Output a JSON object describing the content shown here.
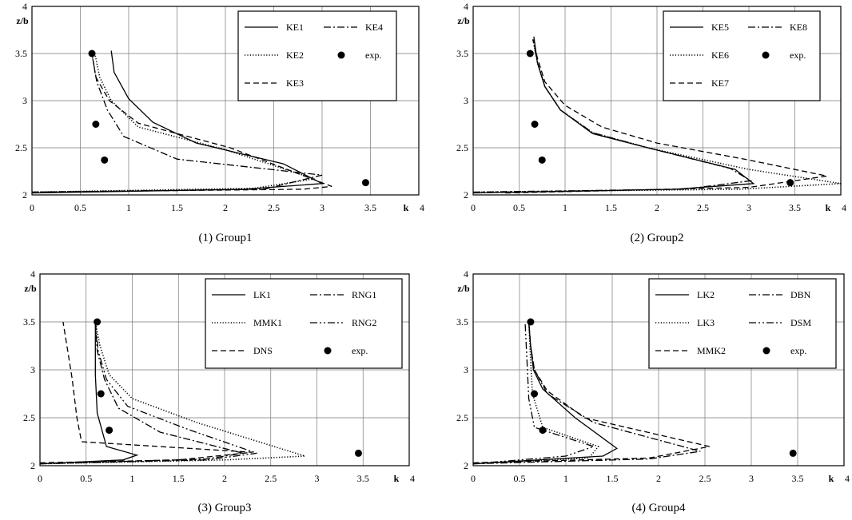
{
  "chart_data": [
    {
      "type": "line",
      "caption": "(1) Group1",
      "xlabel": "k",
      "ylabel": "z/b",
      "xlim": [
        0,
        4
      ],
      "ylim": [
        2,
        4
      ],
      "xticks": [
        "0",
        "0.5",
        "1",
        "1.5",
        "2",
        "2.5",
        "3",
        "3.5",
        "4"
      ],
      "yticks": [
        "2",
        "2.5",
        "3",
        "3.5",
        "4"
      ],
      "grid": true,
      "legend": "top-right",
      "series": [
        {
          "name": "KE1",
          "style": "solid",
          "x": [
            0,
            2.2,
            3.0,
            2.6,
            1.7,
            1.25,
            1.0,
            0.85,
            0.82
          ],
          "y": [
            2.02,
            2.06,
            2.12,
            2.33,
            2.55,
            2.77,
            3.02,
            3.3,
            3.53
          ]
        },
        {
          "name": "KE2",
          "style": "dotted",
          "x": [
            0,
            2.3,
            2.92,
            2.0,
            1.1,
            0.82,
            0.7,
            0.65
          ],
          "y": [
            2.03,
            2.07,
            2.17,
            2.48,
            2.72,
            3.0,
            3.25,
            3.5
          ]
        },
        {
          "name": "KE3",
          "style": "dashed",
          "x": [
            0,
            2.8,
            3.1,
            2.05,
            1.1,
            0.8,
            0.66,
            0.62
          ],
          "y": [
            2.03,
            2.06,
            2.09,
            2.5,
            2.76,
            3.0,
            3.25,
            3.5
          ]
        },
        {
          "name": "KE4",
          "style": "dashdot",
          "x": [
            0,
            2.4,
            3.0,
            1.5,
            0.95,
            0.78,
            0.67,
            0.62
          ],
          "y": [
            2.03,
            2.06,
            2.21,
            2.38,
            2.62,
            2.9,
            3.2,
            3.5
          ]
        },
        {
          "name": "exp.",
          "style": "marker",
          "x": [
            0.62,
            0.66,
            0.75,
            3.45
          ],
          "y": [
            3.5,
            2.75,
            2.37,
            2.13
          ]
        }
      ]
    },
    {
      "type": "line",
      "caption": "(2) Group2",
      "xlabel": "k",
      "ylabel": "z/b",
      "xlim": [
        0,
        4
      ],
      "ylim": [
        2,
        4
      ],
      "xticks": [
        "0",
        "0.5",
        "1",
        "1.5",
        "2",
        "2.5",
        "3",
        "3.5",
        "4"
      ],
      "yticks": [
        "2",
        "2.5",
        "3",
        "3.5",
        "4"
      ],
      "grid": true,
      "legend": "top-right",
      "series": [
        {
          "name": "KE5",
          "style": "solid",
          "x": [
            0,
            2.2,
            3.05,
            2.85,
            1.9,
            1.3,
            0.95,
            0.78,
            0.7,
            0.66
          ],
          "y": [
            2.02,
            2.06,
            2.12,
            2.27,
            2.5,
            2.65,
            2.9,
            3.15,
            3.4,
            3.68
          ]
        },
        {
          "name": "KE6",
          "style": "dotted",
          "x": [
            0,
            2.9,
            4.0,
            3.0,
            1.9,
            1.3,
            0.95,
            0.78,
            0.7,
            0.65
          ],
          "y": [
            2.03,
            2.06,
            2.12,
            2.27,
            2.5,
            2.66,
            2.9,
            3.15,
            3.4,
            3.65
          ]
        },
        {
          "name": "KE7",
          "style": "dashed",
          "x": [
            0.35,
            3.0,
            3.85,
            2.95,
            2.0,
            1.4,
            1.0,
            0.78,
            0.7,
            0.65
          ],
          "y": [
            2.02,
            2.08,
            2.2,
            2.38,
            2.55,
            2.72,
            2.95,
            3.2,
            3.45,
            3.65
          ]
        },
        {
          "name": "KE8",
          "style": "dashdot",
          "x": [
            0,
            2.3,
            3.02,
            2.8,
            1.9,
            1.3,
            0.95,
            0.78,
            0.7,
            0.65
          ],
          "y": [
            2.03,
            2.06,
            2.15,
            2.28,
            2.5,
            2.66,
            2.9,
            3.15,
            3.4,
            3.65
          ]
        },
        {
          "name": "exp.",
          "style": "marker",
          "x": [
            0.62,
            0.67,
            0.75,
            3.45
          ],
          "y": [
            3.5,
            2.75,
            2.37,
            2.13
          ]
        }
      ]
    },
    {
      "type": "line",
      "caption": "(3) Group3",
      "xlabel": "k",
      "ylabel": "z/b",
      "xlim": [
        0,
        4
      ],
      "ylim": [
        2,
        4
      ],
      "xticks": [
        "0",
        "0.5",
        "1",
        "1.5",
        "2",
        "2.5",
        "3",
        "3.5",
        "4"
      ],
      "yticks": [
        "2",
        "2.5",
        "3",
        "3.5",
        "4"
      ],
      "grid": true,
      "legend": "top-right",
      "series": [
        {
          "name": "LK1",
          "style": "solid",
          "x": [
            0,
            0.9,
            1.05,
            0.72,
            0.62,
            0.6,
            0.6
          ],
          "y": [
            2.02,
            2.06,
            2.11,
            2.2,
            2.55,
            2.95,
            3.5
          ]
        },
        {
          "name": "MMK1",
          "style": "dotted",
          "x": [
            0,
            2.0,
            2.87,
            1.7,
            1.0,
            0.75,
            0.65,
            0.6
          ],
          "y": [
            2.02,
            2.06,
            2.1,
            2.45,
            2.7,
            2.95,
            3.25,
            3.5
          ]
        },
        {
          "name": "DNS",
          "style": "dashed",
          "x": [
            0,
            1.5,
            2.3,
            0.45,
            0.4,
            0.35,
            0.3,
            0.25
          ],
          "y": [
            2.03,
            2.06,
            2.14,
            2.25,
            2.5,
            2.9,
            3.2,
            3.5
          ]
        },
        {
          "name": "RNG1",
          "style": "dashdot",
          "x": [
            0,
            1.8,
            2.2,
            1.3,
            0.85,
            0.7,
            0.62,
            0.6
          ],
          "y": [
            2.02,
            2.07,
            2.13,
            2.35,
            2.6,
            2.9,
            3.2,
            3.5
          ]
        },
        {
          "name": "RNG2",
          "style": "dashdotdot",
          "x": [
            0,
            1.8,
            2.35,
            1.6,
            0.95,
            0.72,
            0.63,
            0.6
          ],
          "y": [
            2.02,
            2.06,
            2.13,
            2.38,
            2.62,
            2.9,
            3.2,
            3.5
          ]
        },
        {
          "name": "exp.",
          "style": "marker",
          "x": [
            0.62,
            0.66,
            0.75,
            3.45
          ],
          "y": [
            3.5,
            2.75,
            2.37,
            2.13
          ]
        }
      ]
    },
    {
      "type": "line",
      "caption": "(4) Group4",
      "xlabel": "k",
      "ylabel": "z/b",
      "xlim": [
        0,
        4
      ],
      "ylim": [
        2,
        4
      ],
      "xticks": [
        "0",
        "0.5",
        "1",
        "1.5",
        "2",
        "2.5",
        "3",
        "3.5",
        "4"
      ],
      "yticks": [
        "2",
        "2.5",
        "3",
        "3.5",
        "4"
      ],
      "grid": true,
      "legend": "top-right",
      "series": [
        {
          "name": "LK2",
          "style": "solid",
          "x": [
            0,
            1.4,
            1.55,
            1.1,
            0.75,
            0.65,
            0.62,
            0.6
          ],
          "y": [
            2.02,
            2.1,
            2.18,
            2.5,
            2.8,
            3.0,
            3.25,
            3.5
          ]
        },
        {
          "name": "LK3",
          "style": "dotted",
          "x": [
            0,
            1.25,
            1.35,
            0.75,
            0.64,
            0.62,
            0.6
          ],
          "y": [
            2.02,
            2.08,
            2.2,
            2.4,
            2.75,
            3.1,
            3.5
          ]
        },
        {
          "name": "MMK2",
          "style": "dashed",
          "x": [
            0,
            1.9,
            2.55,
            1.2,
            0.8,
            0.66,
            0.62,
            0.6
          ],
          "y": [
            2.03,
            2.08,
            2.2,
            2.5,
            2.78,
            3.0,
            3.25,
            3.5
          ]
        },
        {
          "name": "DBN",
          "style": "dashdot",
          "x": [
            0,
            1.9,
            2.45,
            1.3,
            0.8,
            0.66,
            0.62,
            0.6
          ],
          "y": [
            2.02,
            2.07,
            2.15,
            2.45,
            2.75,
            3.0,
            3.25,
            3.5
          ]
        },
        {
          "name": "DSM",
          "style": "dashdotdot",
          "x": [
            0,
            1.0,
            1.3,
            0.66,
            0.6,
            0.58,
            0.56
          ],
          "y": [
            2.02,
            2.1,
            2.2,
            2.4,
            2.7,
            3.1,
            3.5
          ]
        },
        {
          "name": "exp.",
          "style": "marker",
          "x": [
            0.62,
            0.66,
            0.75,
            3.45
          ],
          "y": [
            3.5,
            2.75,
            2.37,
            2.13
          ]
        }
      ]
    }
  ]
}
